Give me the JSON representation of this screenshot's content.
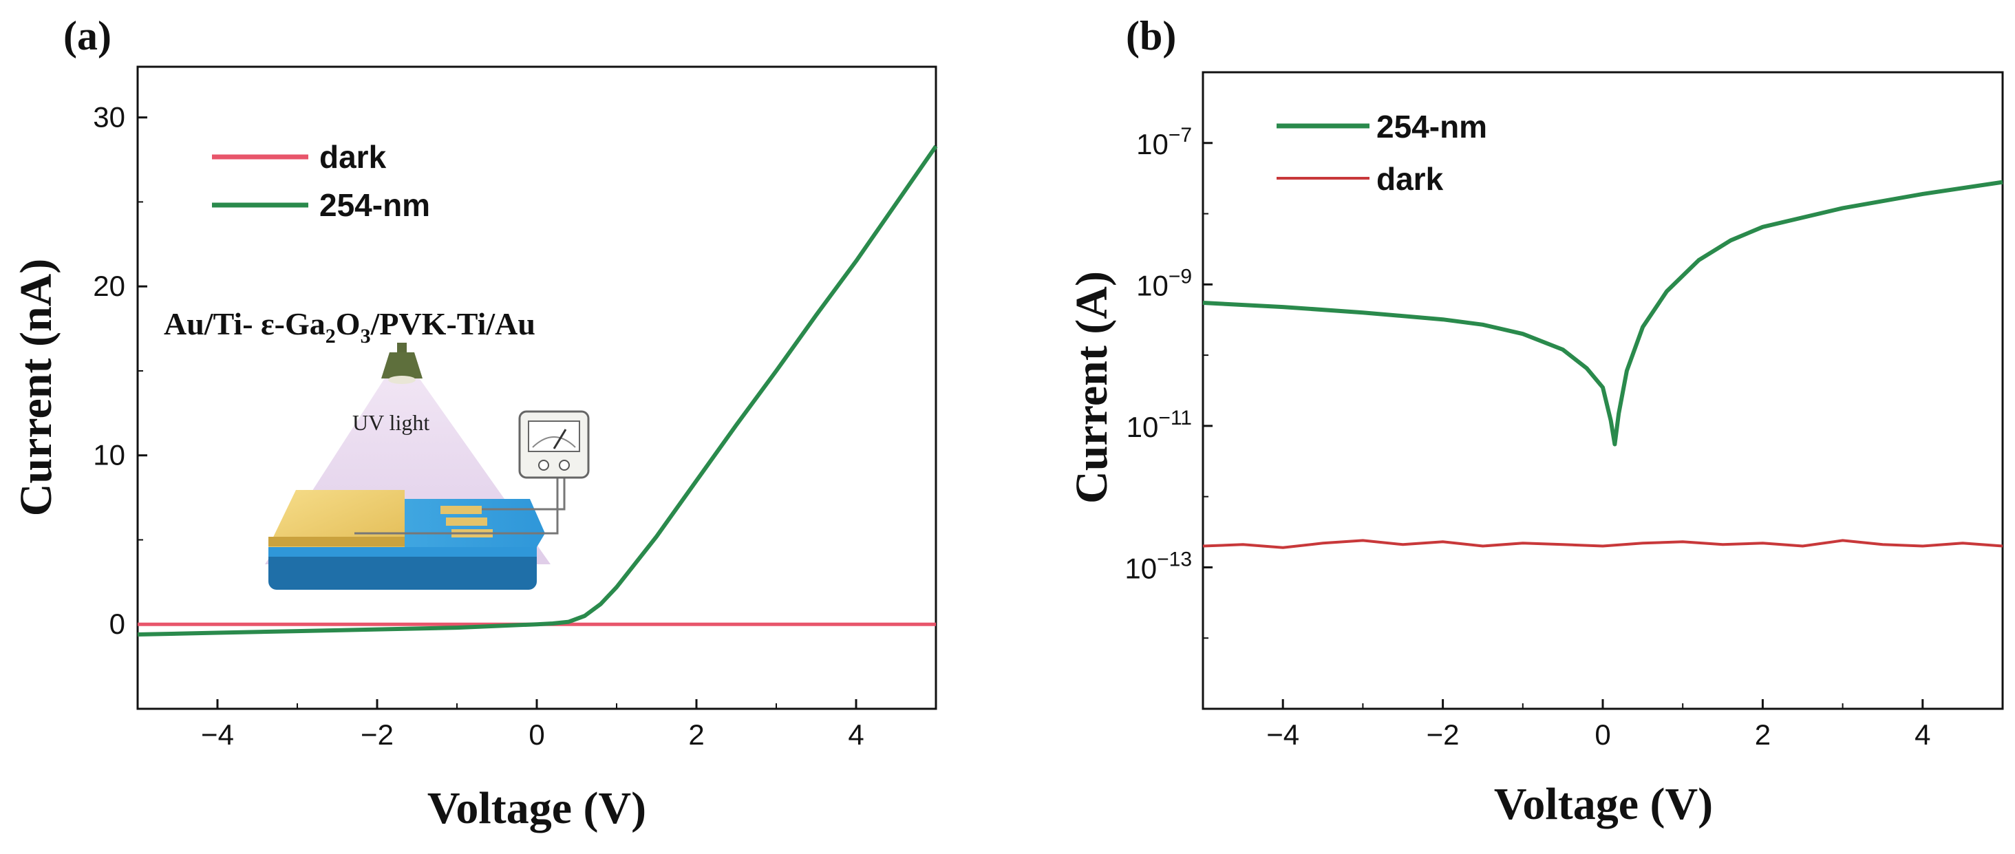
{
  "colors": {
    "photo": "#2a8a4c",
    "dark_a": "#e8556b",
    "dark_b": "#c8383a",
    "axis": "#111111"
  },
  "chart_data": [
    {
      "id": "a",
      "type": "line",
      "panel_label": "(a)",
      "xlabel": "Voltage (V)",
      "ylabel": "Current (nA)",
      "xlim": [
        -5,
        5
      ],
      "ylim": [
        -5,
        33
      ],
      "xticks": [
        -4,
        -2,
        0,
        2,
        4
      ],
      "yticks": [
        0,
        10,
        20,
        30
      ],
      "xtick_labels": [
        "−4",
        "−2",
        "0",
        "2",
        "4"
      ],
      "ytick_labels": [
        "0",
        "10",
        "20",
        "30"
      ],
      "legend": {
        "position": "top-left",
        "entries": [
          "dark",
          "254-nm"
        ]
      },
      "series": [
        {
          "name": "dark",
          "color_key": "dark_a",
          "x": [
            -5,
            -2.5,
            0,
            2.5,
            5
          ],
          "y": [
            0,
            0,
            0,
            0,
            0
          ]
        },
        {
          "name": "254-nm",
          "color_key": "photo",
          "x": [
            -5,
            -4,
            -3,
            -2,
            -1,
            0,
            0.2,
            0.4,
            0.6,
            0.8,
            1.0,
            1.5,
            2.0,
            2.5,
            3.0,
            3.5,
            4.0,
            4.5,
            5.0
          ],
          "y": [
            -0.6,
            -0.5,
            -0.4,
            -0.3,
            -0.2,
            0,
            0.05,
            0.15,
            0.5,
            1.2,
            2.2,
            5.2,
            8.5,
            11.8,
            15.0,
            18.3,
            21.5,
            24.9,
            28.3
          ]
        }
      ],
      "inset": {
        "title": "Au/Ti- ε-Ga₂O₃/PVK-Ti/Au",
        "light_label": "UV light"
      }
    },
    {
      "id": "b",
      "type": "line",
      "yscale": "log",
      "panel_label": "(b)",
      "xlabel": "Voltage (V)",
      "ylabel": "Current (A)",
      "xlim": [
        -5,
        5
      ],
      "ylim_exp": [
        -15,
        -6
      ],
      "xticks": [
        -4,
        -2,
        0,
        2,
        4
      ],
      "xtick_labels": [
        "−4",
        "−2",
        "0",
        "2",
        "4"
      ],
      "ytick_exps": [
        -13,
        -11,
        -9,
        -7
      ],
      "ytick_labels": [
        "10",
        "10",
        "10",
        "10"
      ],
      "ytick_exponent_labels": [
        "−13",
        "−11",
        "−9",
        "−7"
      ],
      "legend": {
        "position": "top-left",
        "entries": [
          "254-nm",
          "dark"
        ]
      },
      "series": [
        {
          "name": "254-nm",
          "color_key": "photo",
          "x": [
            -5,
            -4,
            -3,
            -2,
            -1.5,
            -1,
            -0.5,
            -0.2,
            0,
            0.1,
            0.15,
            0.2,
            0.3,
            0.5,
            0.8,
            1.2,
            1.6,
            2.0,
            3.0,
            4.0,
            5.0
          ],
          "y": [
            5.5e-10,
            4.8e-10,
            4e-10,
            3.2e-10,
            2.7e-10,
            2e-10,
            1.2e-10,
            6.5e-11,
            3.5e-11,
            1.2e-11,
            5.5e-12,
            1.5e-11,
            6e-11,
            2.5e-10,
            8e-10,
            2.2e-09,
            4.2e-09,
            6.5e-09,
            1.2e-08,
            1.9e-08,
            2.8e-08
          ]
        },
        {
          "name": "dark",
          "color_key": "dark_b",
          "x": [
            -5,
            -4.5,
            -4,
            -3.5,
            -3,
            -2.5,
            -2,
            -1.5,
            -1,
            -0.5,
            0,
            0.5,
            1,
            1.5,
            2,
            2.5,
            3,
            3.5,
            4,
            4.5,
            5
          ],
          "y": [
            2e-13,
            2.1e-13,
            1.9e-13,
            2.2e-13,
            2.4e-13,
            2.1e-13,
            2.3e-13,
            2e-13,
            2.2e-13,
            2.1e-13,
            2e-13,
            2.2e-13,
            2.3e-13,
            2.1e-13,
            2.2e-13,
            2e-13,
            2.4e-13,
            2.1e-13,
            2e-13,
            2.2e-13,
            2e-13
          ]
        }
      ]
    }
  ]
}
